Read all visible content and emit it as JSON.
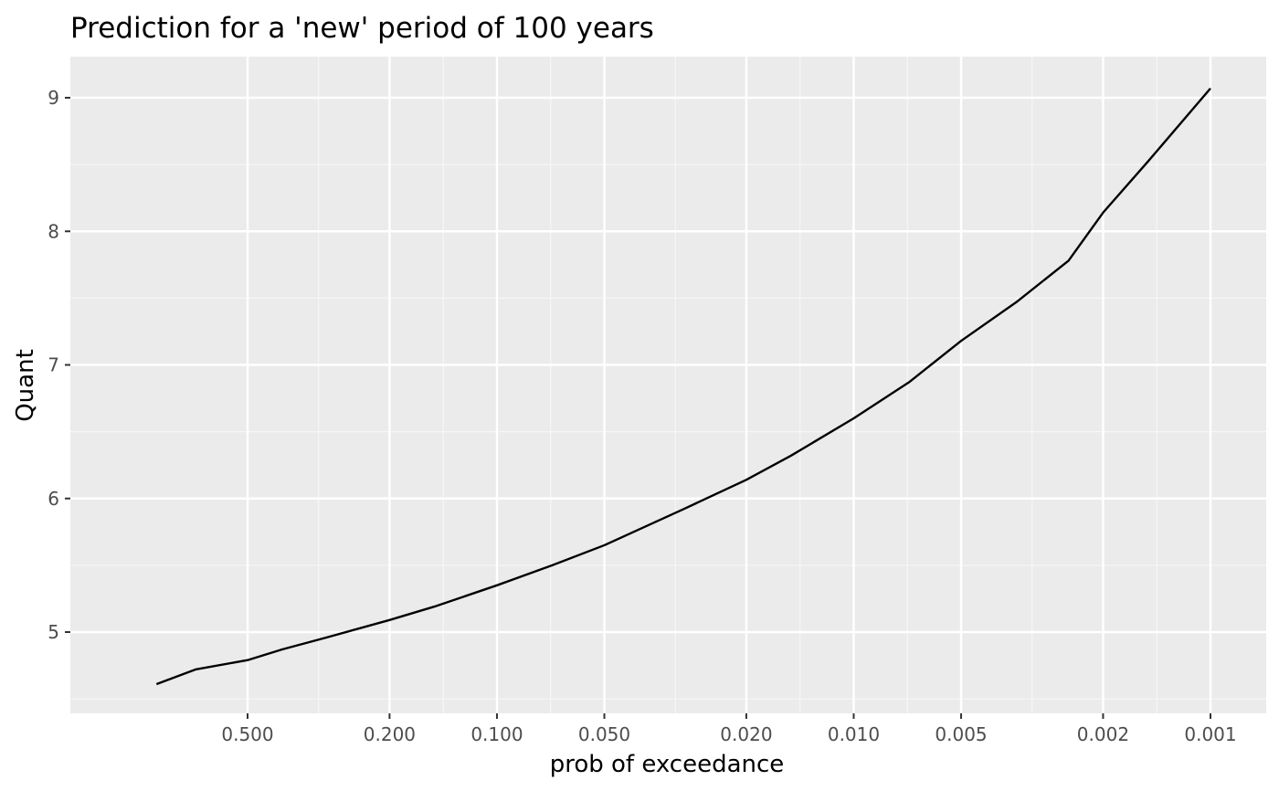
{
  "chart_data": {
    "type": "line",
    "title": "Prediction for a 'new' period of 100 years",
    "xlabel": "prob of exceedance",
    "ylabel": "Quant",
    "x_scale": "reversed-log",
    "x_ticks": [
      0.5,
      0.2,
      0.1,
      0.05,
      0.02,
      0.01,
      0.005,
      0.002,
      0.001
    ],
    "x_tick_labels": [
      "0.500",
      "0.200",
      "0.100",
      "0.050",
      "0.020",
      "0.010",
      "0.005",
      "0.002",
      "0.001"
    ],
    "y_ticks": [
      5,
      6,
      7,
      8,
      9
    ],
    "y_tick_labels": [
      "5",
      "6",
      "7",
      "8",
      "9"
    ],
    "xlim": [
      1.0,
      0.001
    ],
    "ylim": [
      4.4,
      9.3
    ],
    "grid": true,
    "series": [
      {
        "x": [
          0.9,
          0.7,
          0.5,
          0.4,
          0.3,
          0.2,
          0.15,
          0.1,
          0.07,
          0.05,
          0.03,
          0.02,
          0.015,
          0.01,
          0.007,
          0.005,
          0.0035,
          0.0025,
          0.002,
          0.0015,
          0.001
        ],
        "values": [
          4.61,
          4.72,
          4.79,
          4.87,
          4.96,
          5.09,
          5.19,
          5.35,
          5.5,
          5.65,
          5.92,
          6.14,
          6.32,
          6.6,
          6.87,
          7.18,
          7.47,
          7.78,
          8.14,
          8.52,
          9.07
        ]
      }
    ],
    "colors": {
      "panel_background": "#ebebeb",
      "grid_major": "#ffffff",
      "grid_minor": "#f6f6f6",
      "line": "#000000",
      "tick_label": "#4d4d4d"
    }
  }
}
